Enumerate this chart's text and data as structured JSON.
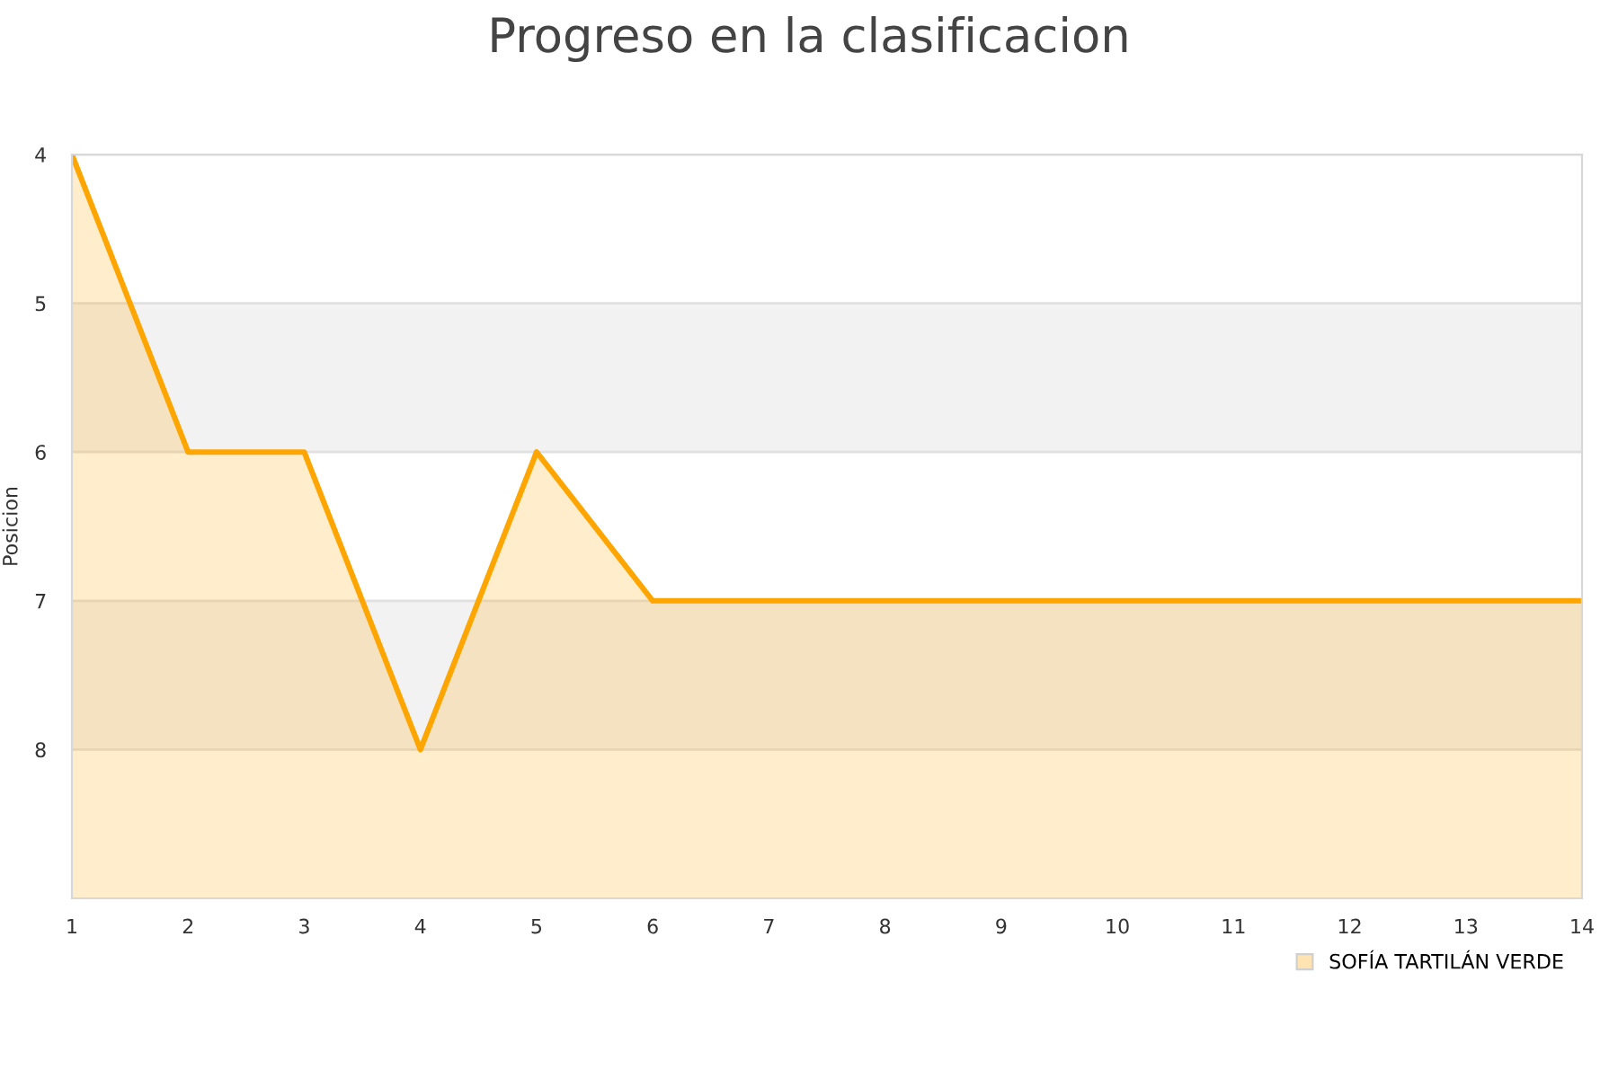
{
  "chart_data": {
    "type": "area",
    "title": "Progreso en la clasificacion",
    "ylabel": "Posicion",
    "x": [
      1,
      2,
      3,
      4,
      5,
      6,
      7,
      8,
      9,
      10,
      11,
      12,
      13,
      14
    ],
    "series": [
      {
        "name": "SOFÍA TARTILÁN VERDE",
        "color": "#ffa500",
        "values": [
          4,
          6,
          6,
          8,
          6,
          7,
          7,
          7,
          7,
          7,
          7,
          7,
          7,
          7
        ]
      }
    ],
    "xlim": [
      1,
      14
    ],
    "xticks": [
      1,
      2,
      3,
      4,
      5,
      6,
      7,
      8,
      9,
      10,
      11,
      12,
      13,
      14
    ],
    "ylim": [
      9,
      4
    ],
    "yticks": [
      4,
      5,
      6,
      7,
      8
    ],
    "bands": [
      {
        "axis": "y",
        "from": 5,
        "to": 6,
        "color": "#f2f2f2"
      },
      {
        "axis": "y",
        "from": 7,
        "to": 8,
        "color": "#f2f2f2"
      }
    ],
    "grid": "y",
    "legend": "bottom right"
  }
}
